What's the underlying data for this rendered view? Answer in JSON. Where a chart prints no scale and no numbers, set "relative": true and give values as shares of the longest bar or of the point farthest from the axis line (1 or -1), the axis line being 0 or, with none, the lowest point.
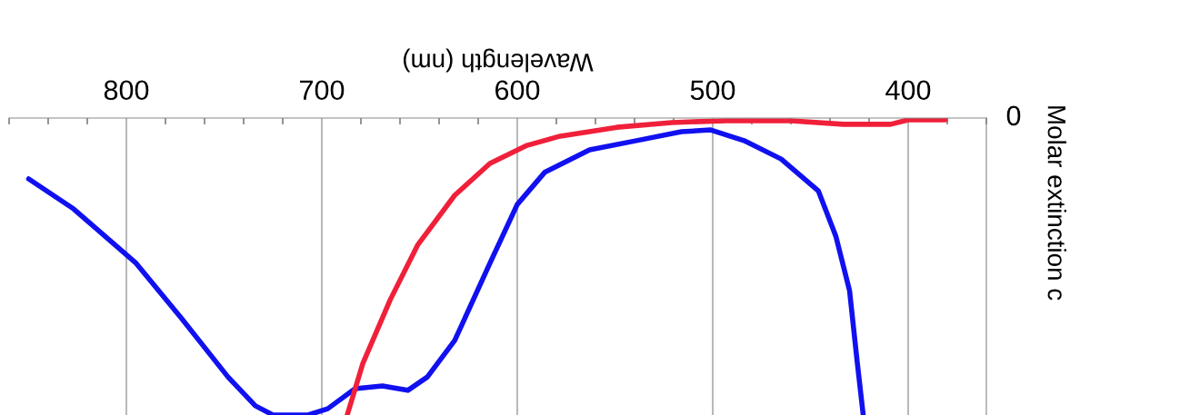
{
  "chart_data": {
    "type": "line",
    "xlabel": "Wavelength (nm)",
    "ylabel": "Molar extinction c",
    "relative": true,
    "xlim": [
      860,
      360
    ],
    "xticks": [
      400,
      500,
      600,
      700,
      800
    ],
    "grid": "x",
    "marker": "none",
    "line_style": "solid",
    "annotations": [
      "0"
    ],
    "series": [
      {
        "color": "#1010f0",
        "x": [
          850,
          827,
          795,
          772,
          748,
          734,
          725,
          707,
          697,
          683,
          669,
          656,
          646,
          632,
          614,
          600,
          586,
          563,
          539,
          516,
          501,
          484,
          465,
          446,
          437,
          430,
          426,
          423
        ],
        "values": [
          -0.205,
          -0.306,
          -0.489,
          -0.673,
          -0.872,
          -0.969,
          -1,
          -1,
          -0.979,
          -0.911,
          -0.902,
          -0.917,
          -0.872,
          -0.749,
          -0.489,
          -0.291,
          -0.183,
          -0.107,
          -0.076,
          -0.046,
          -0.04,
          -0.076,
          -0.138,
          -0.245,
          -0.398,
          -0.581,
          -0.826,
          -1
        ]
      },
      {
        "color": "#f0203a",
        "x": [
          687,
          679,
          665,
          651,
          632,
          614,
          595,
          578,
          549,
          521,
          493,
          460,
          433,
          409,
          400,
          381
        ],
        "values": [
          -1,
          -0.826,
          -0.612,
          -0.428,
          -0.26,
          -0.153,
          -0.092,
          -0.061,
          -0.031,
          -0.015,
          -0.009,
          -0.009,
          -0.021,
          -0.021,
          -0.006,
          -0.006
        ]
      }
    ]
  }
}
